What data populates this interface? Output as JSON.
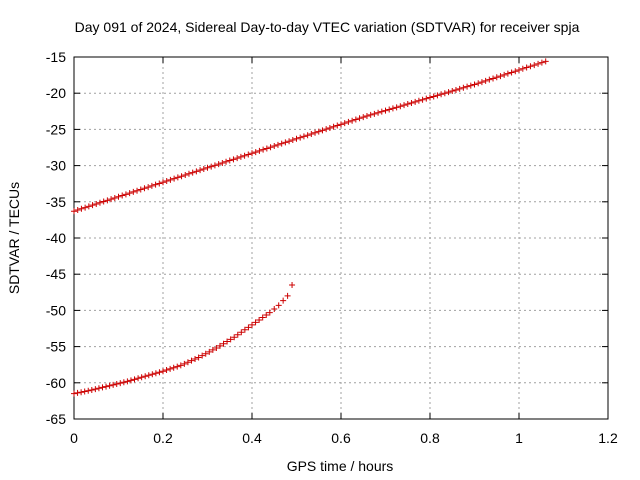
{
  "chart_data": {
    "type": "scatter",
    "title": "Day 091 of 2024, Sidereal Day-to-day VTEC variation (SDTVAR) for receiver spja",
    "xlabel": "GPS time / hours",
    "ylabel": "SDTVAR / TECUs",
    "xlim": [
      0,
      1.2
    ],
    "ylim": [
      -65,
      -15
    ],
    "x_ticks": [
      0,
      0.2,
      0.4,
      0.6,
      0.8,
      1,
      1.2
    ],
    "x_tick_labels": [
      "0",
      "0.2",
      "0.4",
      "0.6",
      "0.8",
      "1",
      "1.2"
    ],
    "y_ticks": [
      -65,
      -60,
      -55,
      -50,
      -45,
      -40,
      -35,
      -30,
      -25,
      -20,
      -15
    ],
    "y_tick_labels": [
      "-65",
      "-60",
      "-55",
      "-50",
      "-45",
      "-40",
      "-35",
      "-30",
      "-25",
      "-20",
      "-15"
    ],
    "grid": true,
    "marker": "+",
    "series": [
      {
        "points": [
          [
            0.0,
            -36.3
          ],
          [
            0.05,
            -35.3
          ],
          [
            0.1,
            -34.3
          ],
          [
            0.15,
            -33.3
          ],
          [
            0.2,
            -32.3
          ],
          [
            0.25,
            -31.3
          ],
          [
            0.3,
            -30.3
          ],
          [
            0.35,
            -29.3
          ],
          [
            0.4,
            -28.3
          ],
          [
            0.45,
            -27.3
          ],
          [
            0.5,
            -26.3
          ],
          [
            0.55,
            -25.3
          ],
          [
            0.6,
            -24.3
          ],
          [
            0.65,
            -23.3
          ],
          [
            0.7,
            -22.4
          ],
          [
            0.75,
            -21.5
          ],
          [
            0.8,
            -20.6
          ],
          [
            0.85,
            -19.7
          ],
          [
            0.9,
            -18.8
          ],
          [
            0.95,
            -17.8
          ],
          [
            1.0,
            -16.8
          ],
          [
            1.06,
            -15.6
          ]
        ]
      },
      {
        "points": [
          [
            0.0,
            -61.5
          ],
          [
            0.04,
            -61.0
          ],
          [
            0.08,
            -60.4
          ],
          [
            0.12,
            -59.8
          ],
          [
            0.16,
            -59.1
          ],
          [
            0.2,
            -58.4
          ],
          [
            0.24,
            -57.6
          ],
          [
            0.28,
            -56.5
          ],
          [
            0.32,
            -55.2
          ],
          [
            0.36,
            -53.7
          ],
          [
            0.4,
            -52.0
          ],
          [
            0.44,
            -50.3
          ],
          [
            0.46,
            -49.3
          ],
          [
            0.48,
            -48.0
          ],
          [
            0.49,
            -46.5
          ]
        ]
      }
    ],
    "colors": {
      "marker": "#cc0000",
      "frame": "#000000",
      "grid": "#a0a0a0"
    }
  }
}
